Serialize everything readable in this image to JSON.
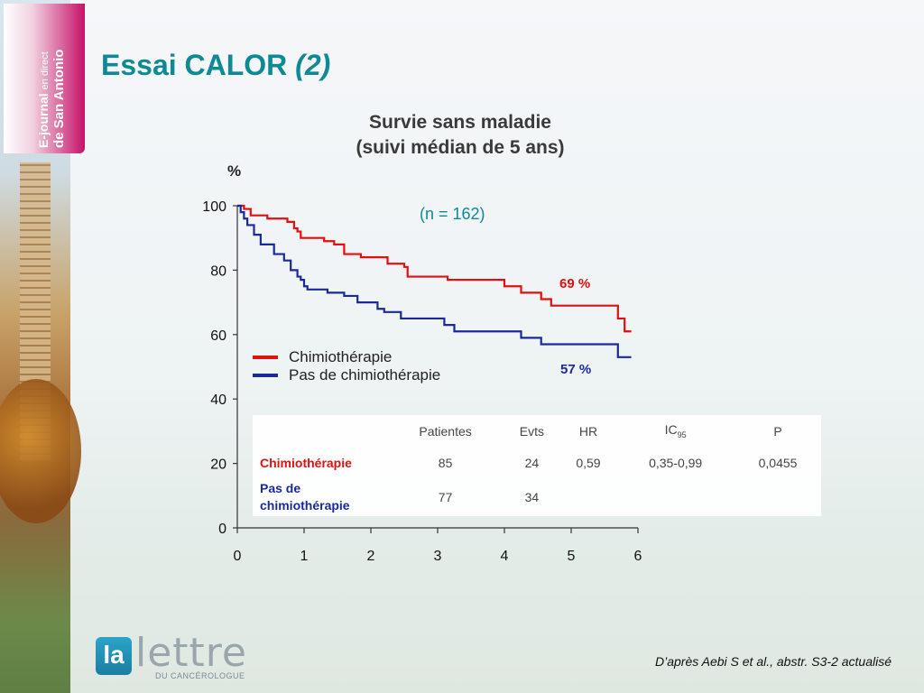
{
  "header": {
    "badge_line1_bold": "E-journal",
    "badge_line1_rest": "en direct",
    "badge_line2": "de San Antonio"
  },
  "slide": {
    "title": "Essai CALOR",
    "title_suffix": "(2)",
    "source": "D’après Aebi S et al., abstr. S3-2 actualisé"
  },
  "footer": {
    "logo_mark": "la",
    "logo_word": "lettre",
    "logo_sub": "DU CANCÉROLOGUE"
  },
  "chart_data": {
    "type": "line",
    "title": "Survie sans maladie",
    "subtitle": "(suivi médian de 5 ans)",
    "ylabel": "%",
    "xlim": [
      0,
      6
    ],
    "ylim": [
      0,
      100
    ],
    "x_ticks": [
      "0",
      "1",
      "2",
      "3",
      "4",
      "5",
      "6"
    ],
    "y_ticks": [
      "0",
      "20",
      "40",
      "60",
      "80",
      "100"
    ],
    "annotation": "(n = 162)",
    "series": [
      {
        "name": "Chimiothérapie",
        "color": "#e01010",
        "end_label": "69 %",
        "steps": [
          [
            0,
            100
          ],
          [
            0.1,
            99
          ],
          [
            0.2,
            97
          ],
          [
            0.45,
            96
          ],
          [
            0.75,
            95
          ],
          [
            0.85,
            93
          ],
          [
            0.9,
            92
          ],
          [
            0.95,
            90
          ],
          [
            1.3,
            89
          ],
          [
            1.45,
            88
          ],
          [
            1.6,
            85
          ],
          [
            1.85,
            84
          ],
          [
            2.25,
            82
          ],
          [
            2.5,
            81
          ],
          [
            2.55,
            78
          ],
          [
            3.15,
            77
          ],
          [
            4.0,
            75
          ],
          [
            4.25,
            73
          ],
          [
            4.55,
            71
          ],
          [
            4.7,
            69
          ],
          [
            5.7,
            65
          ],
          [
            5.8,
            61
          ],
          [
            5.9,
            61
          ]
        ]
      },
      {
        "name": "Pas de chimiothérapie",
        "color": "#1a2a9a",
        "end_label": "57 %",
        "steps": [
          [
            0,
            100
          ],
          [
            0.05,
            98
          ],
          [
            0.1,
            96
          ],
          [
            0.15,
            94
          ],
          [
            0.25,
            91
          ],
          [
            0.35,
            88
          ],
          [
            0.55,
            85
          ],
          [
            0.7,
            83
          ],
          [
            0.8,
            80
          ],
          [
            0.9,
            78
          ],
          [
            0.95,
            77
          ],
          [
            1.0,
            75
          ],
          [
            1.05,
            74
          ],
          [
            1.35,
            73
          ],
          [
            1.6,
            72
          ],
          [
            1.8,
            70
          ],
          [
            2.1,
            68
          ],
          [
            2.2,
            67
          ],
          [
            2.45,
            65
          ],
          [
            3.1,
            63
          ],
          [
            3.25,
            61
          ],
          [
            4.25,
            59
          ],
          [
            4.55,
            57
          ],
          [
            5.7,
            53
          ],
          [
            5.9,
            53
          ]
        ]
      }
    ],
    "table": {
      "headers": [
        "",
        "Patientes",
        "Evts",
        "HR",
        "IC",
        "P"
      ],
      "ic_subscript": "95",
      "rows": [
        {
          "label": "Chimiothérapie",
          "color": "#e01010",
          "cells": [
            "85",
            "24",
            "0,59",
            "0,35-0,99",
            "0,0455"
          ]
        },
        {
          "label": "Pas de chimiothérapie",
          "color": "#1a2a9a",
          "cells": [
            "77",
            "34",
            "",
            "",
            ""
          ]
        }
      ]
    }
  }
}
